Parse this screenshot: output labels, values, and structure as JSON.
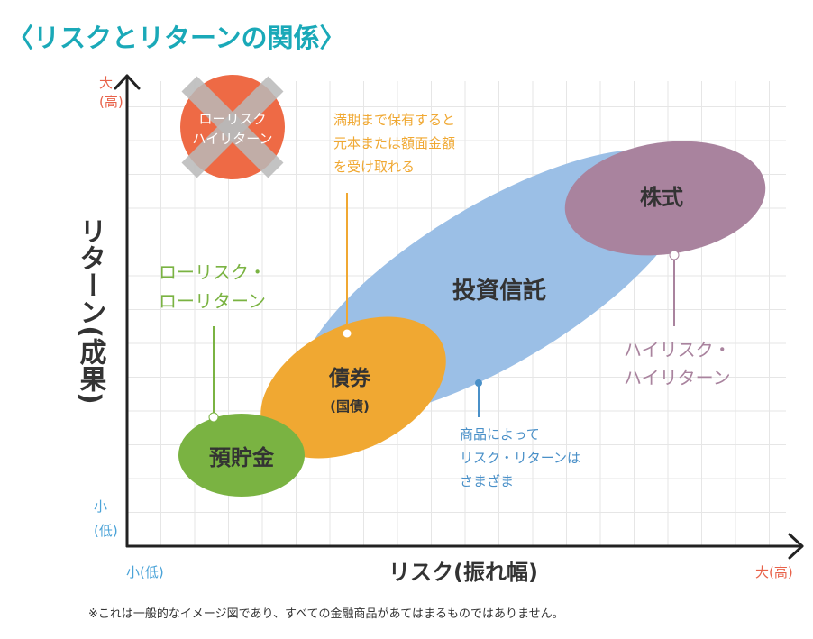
{
  "title": "〈リスクとリターンの関係〉",
  "axes": {
    "y_label": "リターン(成果)",
    "y_high": "大(高)",
    "y_low": "小(低)",
    "x_label": "リスク(振れ幅)",
    "x_low": "小(低)",
    "x_high": "大(高)"
  },
  "crossed_out": {
    "line1": "ローリスク",
    "line2": "ハイリターン"
  },
  "products": {
    "savings": "預貯金",
    "bonds": "債券",
    "bonds_sub": "(国債)",
    "funds": "投資信託",
    "stocks": "株式"
  },
  "annotations": {
    "bonds_note": [
      "満期まで保有すると",
      "元本または額面金額",
      "を受け取れる"
    ],
    "low_note": [
      "ローリスク・",
      "ローリターン"
    ],
    "high_note": [
      "ハイリスク・",
      "ハイリターン"
    ],
    "funds_note": [
      "商品によって",
      "リスク・リターンは",
      "さまざま"
    ]
  },
  "footnote": "※これは一般的なイメージ図であり、すべての金融商品があてはまるものではありません。",
  "colors": {
    "title": "#1aa9b8",
    "axis_small_labels": "#e8624a",
    "axis_low_labels": "#4aa3d8",
    "savings": "#7ab342",
    "bonds": "#f0a832",
    "funds": "#9bbfe6",
    "stocks": "#a9839e",
    "crossed_circle": "#ee6a45",
    "crossed_x": "#b8b8b8",
    "low_note": "#7ab342",
    "high_note": "#a9839e",
    "bonds_note": "#f0a832",
    "funds_note": "#4a90c8"
  }
}
